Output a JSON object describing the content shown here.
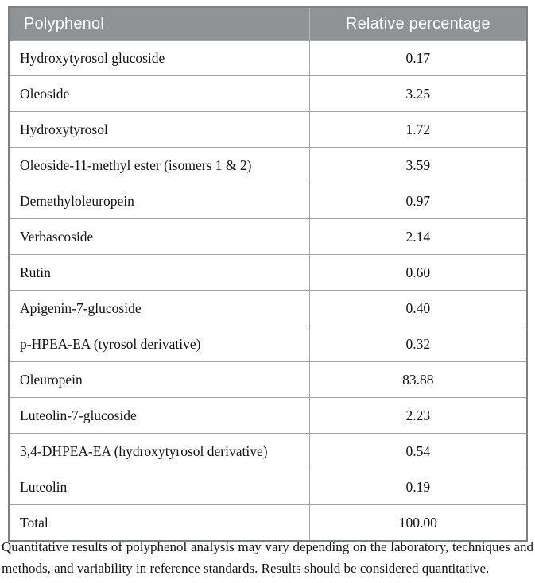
{
  "table": {
    "columns": [
      {
        "label": "Polyphenol"
      },
      {
        "label": "Relative percentage"
      }
    ],
    "rows": [
      {
        "name": "Hydroxytyrosol glucoside",
        "value": "0.17"
      },
      {
        "name": "Oleoside",
        "value": "3.25"
      },
      {
        "name": "Hydroxytyrosol",
        "value": "1.72"
      },
      {
        "name": "Oleoside-11-methyl ester (isomers 1 & 2)",
        "value": "3.59"
      },
      {
        "name": "Demethyloleuropein",
        "value": "0.97"
      },
      {
        "name": "Verbascoside",
        "value": "2.14"
      },
      {
        "name": "Rutin",
        "value": "0.60"
      },
      {
        "name": "Apigenin-7-glucoside",
        "value": "0.40"
      },
      {
        "name": "p-HPEA-EA (tyrosol derivative)",
        "value": "0.32"
      },
      {
        "name": "Oleuropein",
        "value": "83.88"
      },
      {
        "name": "Luteolin-7-glucoside",
        "value": "2.23"
      },
      {
        "name": "3,4-DHPEA-EA (hydroxytyrosol derivative)",
        "value": "0.54"
      },
      {
        "name": "Luteolin",
        "value": "0.19"
      },
      {
        "name": "Total",
        "value": "100.00"
      }
    ]
  },
  "footnote": "Quantitative results of polyphenol analysis may vary depending on the laboratory, techniques and methods, and variability in reference standards. Results should be considered quantitative.",
  "colors": {
    "header_bg": "#8f9396",
    "header_text": "#ffffff",
    "outer_border": "#7d8184",
    "grid_line": "#a3a3a3",
    "body_text": "#141414"
  }
}
